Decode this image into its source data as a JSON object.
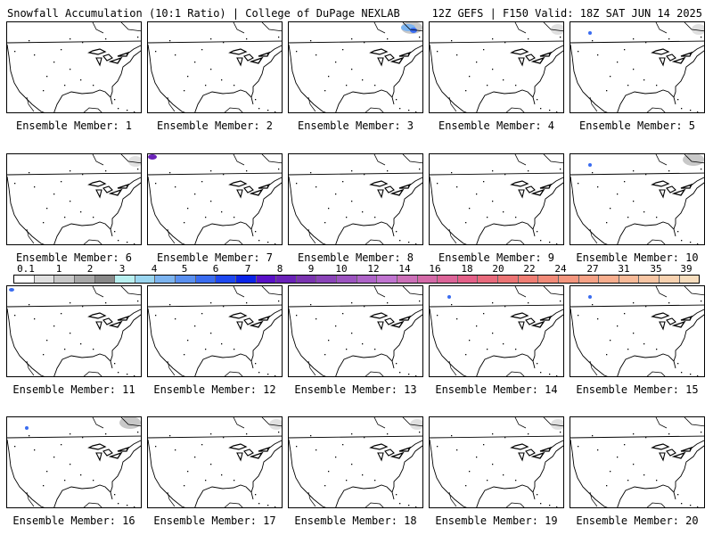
{
  "header": {
    "left_title": "Snowfall Accumulation (10:1 Ratio) | College of DuPage NEXLAB",
    "right_title": "12Z GEFS | F150 Valid: 18Z SAT JUN 14 2025"
  },
  "legend": {
    "labels": [
      "0.1",
      "1",
      "2",
      "3",
      "4",
      "5",
      "6",
      "7",
      "8",
      "9",
      "10",
      "12",
      "14",
      "16",
      "18",
      "20",
      "22",
      "24",
      "27",
      "31",
      "35",
      "39"
    ],
    "colors": [
      "#ffffff",
      "#e0e0e0",
      "#c8c8c8",
      "#a8a8a8",
      "#888888",
      "#b8f0f0",
      "#9ad6f0",
      "#7cb4f0",
      "#5a90f0",
      "#3a6cf0",
      "#1e48f0",
      "#0a24e8",
      "#5a10c8",
      "#6a22b8",
      "#7a34b0",
      "#8a44b8",
      "#9c54c0",
      "#ae64c8",
      "#c074d0",
      "#cc70b8",
      "#d46aa8",
      "#dc6498",
      "#e46088",
      "#e86a7c",
      "#ec7474",
      "#f07e74",
      "#f28a78",
      "#f4967e",
      "#f6a286",
      "#f8ae8e",
      "#f8ba98",
      "#f8c6a4",
      "#f8d2b0",
      "#f8debe"
    ]
  },
  "panels": [
    {
      "label": "Ensemble Member: 1",
      "snow": []
    },
    {
      "label": "Ensemble Member: 2",
      "snow": []
    },
    {
      "label": "Ensemble Member: 3",
      "snow": [
        "northeast-gray",
        "northeast-blue"
      ]
    },
    {
      "label": "Ensemble Member: 4",
      "snow": [
        "northeast-gray-light"
      ]
    },
    {
      "label": "Ensemble Member: 5",
      "snow": [
        "northeast-gray-light",
        "rockies-blue"
      ]
    },
    {
      "label": "Ensemble Member: 6",
      "snow": [
        "northeast-gray-light"
      ]
    },
    {
      "label": "Ensemble Member: 7",
      "snow": [
        "northwest-purple"
      ]
    },
    {
      "label": "Ensemble Member: 8",
      "snow": []
    },
    {
      "label": "Ensemble Member: 9",
      "snow": []
    },
    {
      "label": "Ensemble Member: 10",
      "snow": [
        "northeast-gray",
        "rockies-blue"
      ]
    },
    {
      "label": "Ensemble Member: 11",
      "snow": [
        "northwest-blue"
      ]
    },
    {
      "label": "Ensemble Member: 12",
      "snow": []
    },
    {
      "label": "Ensemble Member: 13",
      "snow": []
    },
    {
      "label": "Ensemble Member: 14",
      "snow": [
        "rockies-blue"
      ]
    },
    {
      "label": "Ensemble Member: 15",
      "snow": [
        "rockies-blue"
      ]
    },
    {
      "label": "Ensemble Member: 16",
      "snow": [
        "northeast-gray",
        "rockies-blue"
      ]
    },
    {
      "label": "Ensemble Member: 17",
      "snow": [
        "northeast-gray-light"
      ]
    },
    {
      "label": "Ensemble Member: 18",
      "snow": [
        "northeast-gray-light"
      ]
    },
    {
      "label": "Ensemble Member: 19",
      "snow": [
        "northeast-gray-light"
      ]
    },
    {
      "label": "Ensemble Member: 20",
      "snow": []
    }
  ]
}
